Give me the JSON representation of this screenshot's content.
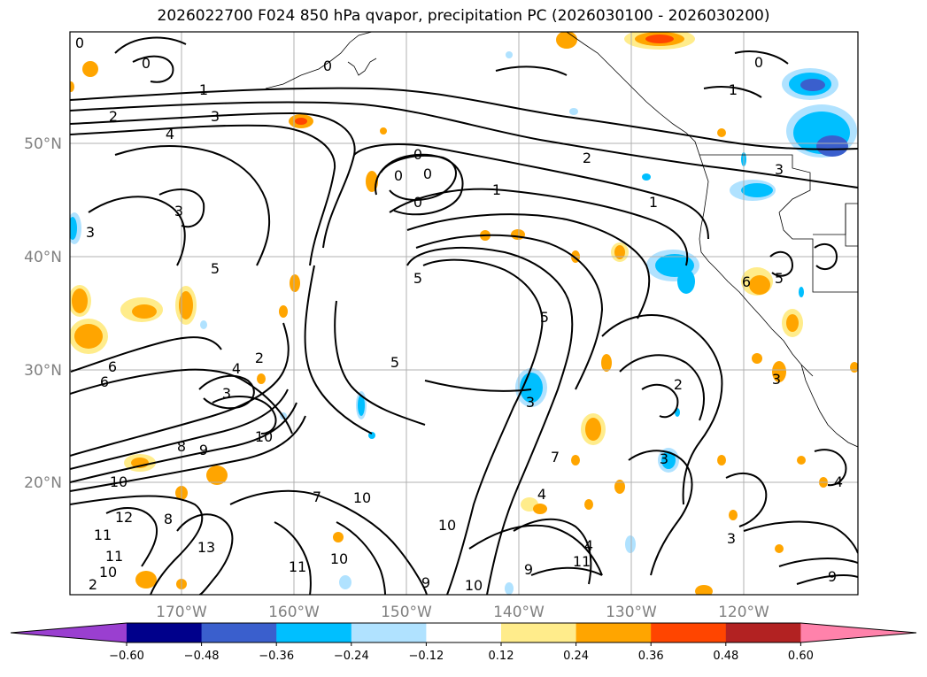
{
  "title": "2026022700 F024 850 hPa qvapor, precipitation PC (2026030100 - 2026030200)",
  "map": {
    "lat_labels": [
      "50°N",
      "40°N",
      "30°N",
      "20°N"
    ],
    "lon_labels": [
      "170°W",
      "160°W",
      "150°W",
      "140°W",
      "130°W",
      "120°W"
    ],
    "gridline_color": "#b0b0b0",
    "contour_color": "#000000"
  },
  "contour_labels": [
    {
      "t": "0"
    },
    {
      "t": "0"
    },
    {
      "t": "0"
    },
    {
      "t": "1"
    },
    {
      "t": "2"
    },
    {
      "t": "3"
    },
    {
      "t": "4"
    },
    {
      "t": "0"
    },
    {
      "t": "0"
    },
    {
      "t": "0"
    },
    {
      "t": "0"
    },
    {
      "t": "2"
    },
    {
      "t": "1"
    },
    {
      "t": "1"
    },
    {
      "t": "0"
    },
    {
      "t": "1"
    },
    {
      "t": "3"
    },
    {
      "t": "3"
    },
    {
      "t": "3"
    },
    {
      "t": "5"
    },
    {
      "t": "5"
    },
    {
      "t": "5"
    },
    {
      "t": "5"
    },
    {
      "t": "6"
    },
    {
      "t": "6"
    },
    {
      "t": "5"
    },
    {
      "t": "6"
    },
    {
      "t": "2"
    },
    {
      "t": "3"
    },
    {
      "t": "4"
    },
    {
      "t": "3"
    },
    {
      "t": "10"
    },
    {
      "t": "8"
    },
    {
      "t": "9"
    },
    {
      "t": "10"
    },
    {
      "t": "7"
    },
    {
      "t": "10"
    },
    {
      "t": "12"
    },
    {
      "t": "11"
    },
    {
      "t": "8"
    },
    {
      "t": "13"
    },
    {
      "t": "11"
    },
    {
      "t": "10"
    },
    {
      "t": "11"
    },
    {
      "t": "10"
    },
    {
      "t": "9"
    },
    {
      "t": "10"
    },
    {
      "t": "9"
    },
    {
      "t": "11"
    },
    {
      "t": "10"
    },
    {
      "t": "3"
    },
    {
      "t": "2"
    },
    {
      "t": "4"
    },
    {
      "t": "3"
    },
    {
      "t": "3"
    },
    {
      "t": "4"
    },
    {
      "t": "2"
    },
    {
      "t": "4"
    },
    {
      "t": "9"
    },
    {
      "t": "7"
    }
  ],
  "colorbar": {
    "tick_labels": [
      "−0.60",
      "−0.48",
      "−0.36",
      "−0.24",
      "−0.12",
      "0.12",
      "0.24",
      "0.36",
      "0.48",
      "0.60"
    ],
    "colors": [
      "#9a3fd0",
      "#00008b",
      "#3a5fcd",
      "#00bfff",
      "#b0e2ff",
      "#ffffff",
      "#ffec8b",
      "#ffa500",
      "#ff4500",
      "#b22222",
      "#ff82ab"
    ]
  }
}
